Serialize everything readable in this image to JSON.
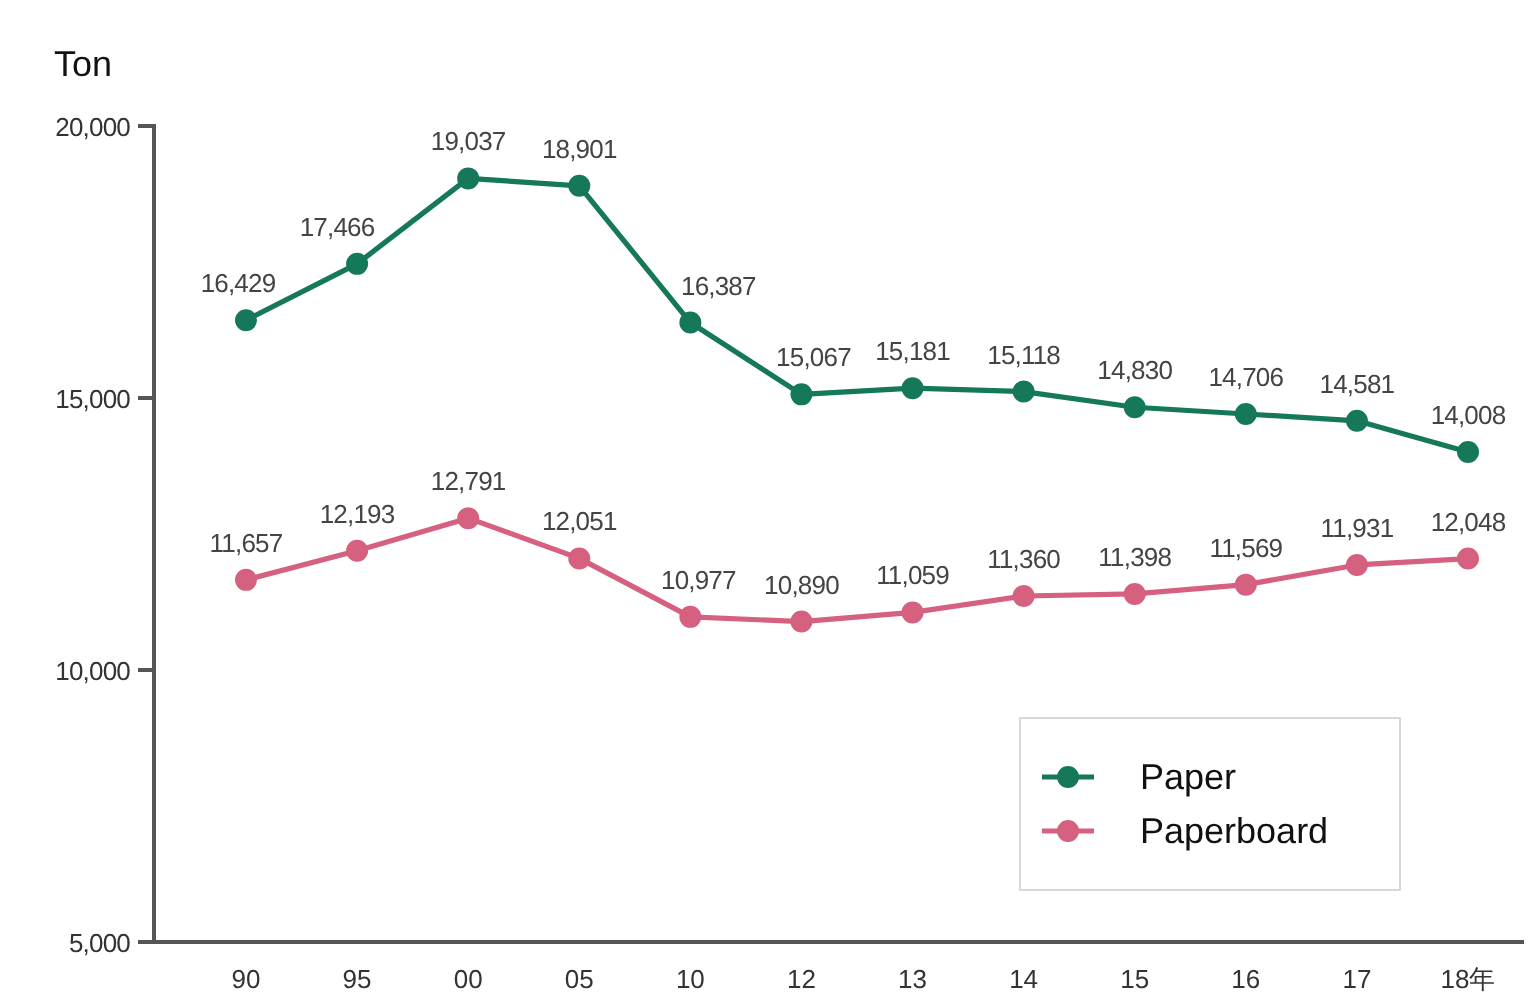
{
  "chart_data": {
    "type": "line",
    "ylabel": "Ton",
    "categories": [
      "90",
      "95",
      "00",
      "05",
      "10",
      "12",
      "13",
      "14",
      "15",
      "16",
      "17",
      "18年"
    ],
    "series": [
      {
        "name": "Paper",
        "color": "#15785a",
        "values": [
          16429,
          17466,
          19037,
          18901,
          16387,
          15067,
          15181,
          15118,
          14830,
          14706,
          14581,
          14008
        ],
        "value_labels": [
          "16,429",
          "17,466",
          "19,037",
          "18,901",
          "16,387",
          "15,067",
          "15,181",
          "15,118",
          "14,830",
          "14,706",
          "14,581",
          "14,008"
        ]
      },
      {
        "name": "Paperboard",
        "color": "#d6607f",
        "values": [
          11657,
          12193,
          12791,
          12051,
          10977,
          10890,
          11059,
          11360,
          11398,
          11569,
          11931,
          12048
        ],
        "value_labels": [
          "11,657",
          "12,193",
          "12,791",
          "12,051",
          "10,977",
          "10,890",
          "11,059",
          "11,360",
          "11,398",
          "11,569",
          "11,931",
          "12,048"
        ]
      }
    ],
    "ylim": [
      5000,
      20000
    ],
    "yticks": [
      {
        "value": 5000,
        "label": "5,000"
      },
      {
        "value": 10000,
        "label": "10,000"
      },
      {
        "value": 15000,
        "label": "15,000"
      },
      {
        "value": 20000,
        "label": "20,000"
      }
    ],
    "legend": "bottom right",
    "marker": "circle",
    "line_style": "solid"
  }
}
